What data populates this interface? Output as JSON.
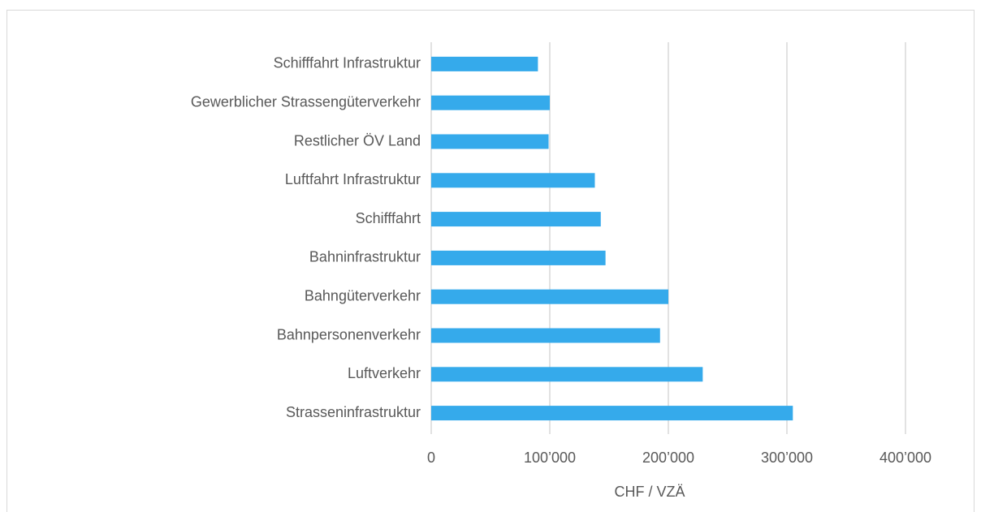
{
  "chart_data": {
    "type": "bar",
    "orientation": "horizontal",
    "categories": [
      "Schifffahrt Infrastruktur",
      "Gewerblicher Strassengüterverkehr",
      "Restlicher ÖV Land",
      "Luftfahrt Infrastruktur",
      "Schifffahrt",
      "Bahninfrastruktur",
      "Bahngüterverkehr",
      "Bahnpersonenverkehr",
      "Luftverkehr",
      "Strasseninfrastruktur"
    ],
    "values": [
      90000,
      100000,
      99000,
      138000,
      143000,
      147000,
      200000,
      193000,
      229000,
      305000
    ],
    "color": "#35aaeb",
    "xlabel": "CHF / VZÄ",
    "xlim": [
      0,
      400000
    ],
    "xticks": [
      0,
      {
        "value": 100000,
        "label": "100’000"
      },
      {
        "value": 200000,
        "label": "200’000"
      },
      {
        "value": 300000,
        "label": "300’000"
      },
      {
        "value": 400000,
        "label": "400’000"
      }
    ],
    "grid": true
  }
}
